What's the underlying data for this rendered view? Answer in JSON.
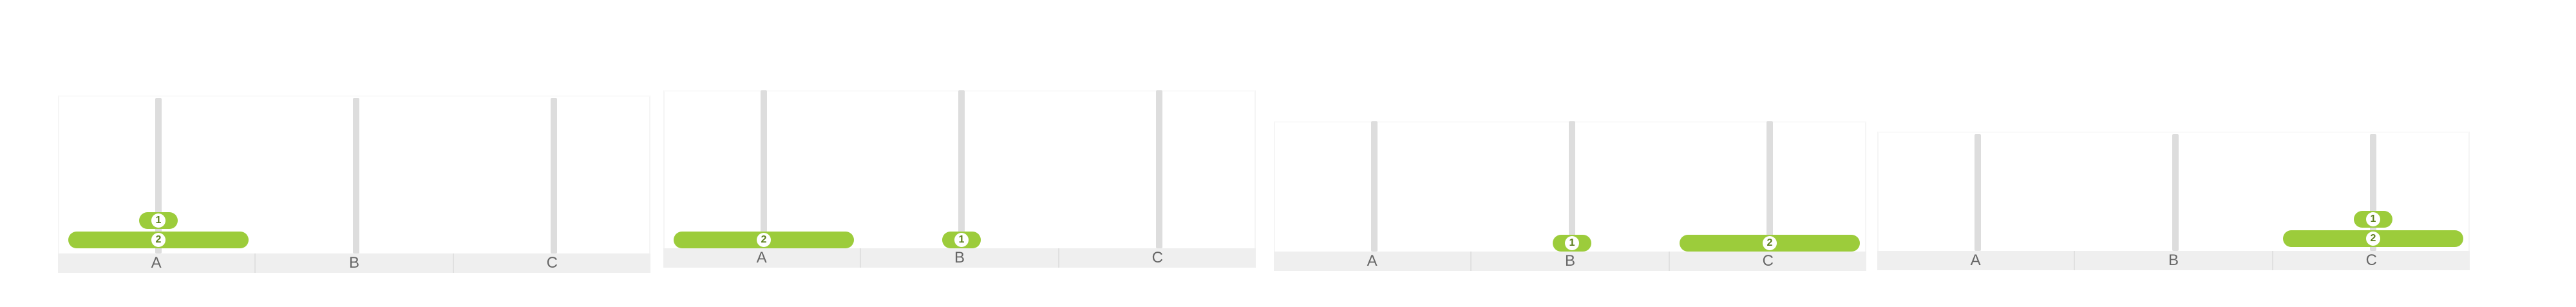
{
  "colors": {
    "disk": "#9ccc3b",
    "peg": "#dddddd",
    "base": "#efefef",
    "label": "#666666"
  },
  "peg_labels": [
    "A",
    "B",
    "C"
  ],
  "states": [
    {
      "pegs": {
        "A": [
          2,
          1
        ],
        "B": [],
        "C": []
      }
    },
    {
      "pegs": {
        "A": [
          2
        ],
        "B": [
          1
        ],
        "C": []
      }
    },
    {
      "pegs": {
        "A": [],
        "B": [
          1
        ],
        "C": [
          2
        ]
      }
    },
    {
      "pegs": {
        "A": [],
        "B": [],
        "C": [
          2,
          1
        ]
      }
    }
  ]
}
